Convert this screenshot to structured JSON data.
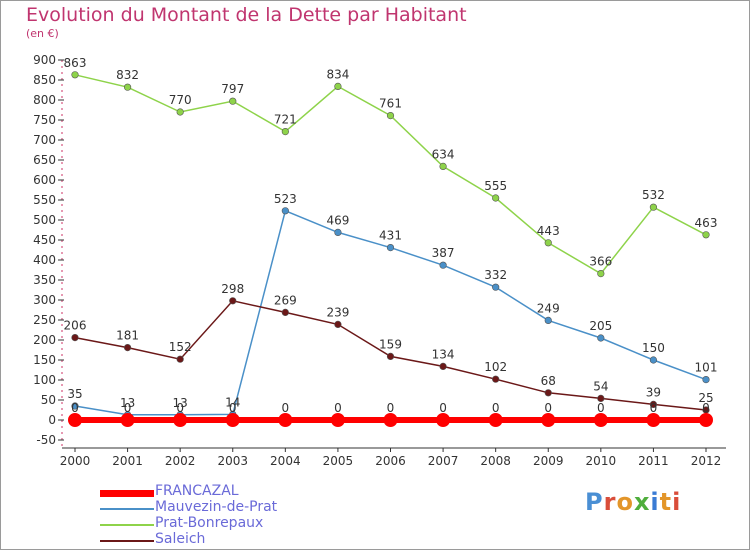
{
  "title": "Evolution du Montant de la Dette par Habitant",
  "unit": "(en €)",
  "logo": "Proxiti",
  "chart_data": {
    "type": "line",
    "categories": [
      "2000",
      "2001",
      "2002",
      "2003",
      "2004",
      "2005",
      "2006",
      "2007",
      "2008",
      "2009",
      "2010",
      "2011",
      "2012"
    ],
    "ylim": [
      -50,
      900
    ],
    "yticks": [
      -50,
      0,
      50,
      100,
      150,
      200,
      250,
      300,
      350,
      400,
      450,
      500,
      550,
      600,
      650,
      700,
      750,
      800,
      850,
      900
    ],
    "grid": false,
    "legend_position": "bottom-left",
    "series": [
      {
        "name": "FRANCAZAL",
        "color": "#ff0000",
        "values": [
          0,
          0,
          0,
          0,
          0,
          0,
          0,
          0,
          0,
          0,
          0,
          0,
          0
        ]
      },
      {
        "name": "Mauvezin-de-Prat",
        "color": "#4a90c8",
        "values": [
          35,
          13,
          13,
          14,
          523,
          469,
          431,
          387,
          332,
          249,
          205,
          150,
          101
        ]
      },
      {
        "name": "Prat-Bonrepaux",
        "color": "#8ed34a",
        "values": [
          863,
          832,
          770,
          797,
          721,
          834,
          761,
          634,
          555,
          443,
          366,
          532,
          463
        ]
      },
      {
        "name": "Saleich",
        "color": "#6b1818",
        "values": [
          206,
          181,
          152,
          298,
          269,
          239,
          159,
          134,
          102,
          68,
          54,
          39,
          25
        ]
      }
    ]
  }
}
